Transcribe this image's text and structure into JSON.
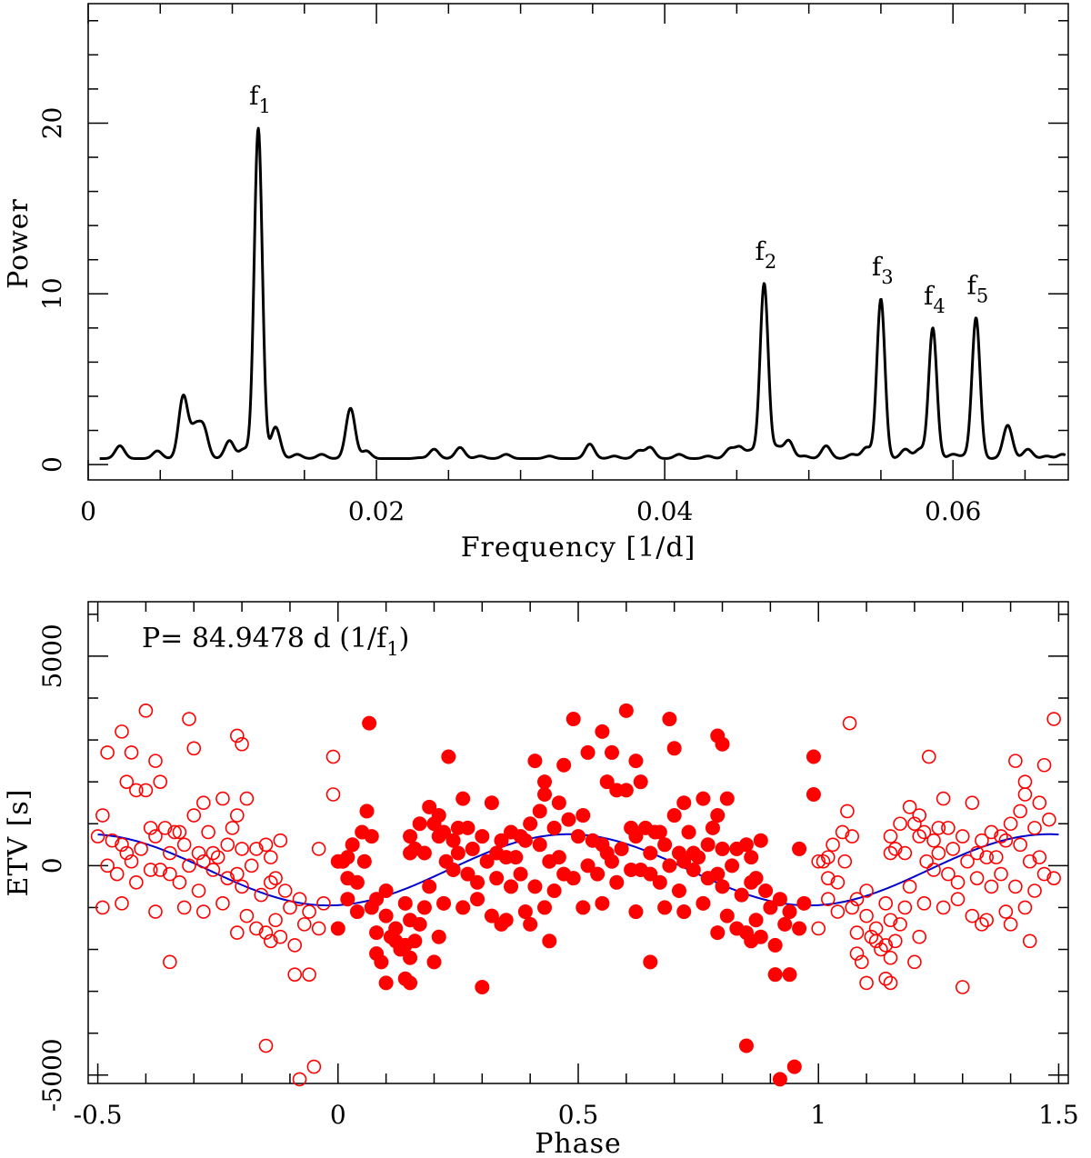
{
  "chart_data": [
    {
      "type": "line",
      "name": "periodogram",
      "xlabel": "Frequency [1/d]",
      "ylabel": "Power",
      "xlim": [
        0,
        0.068
      ],
      "ylim": [
        -0.9,
        27
      ],
      "xticks": [
        0,
        0.02,
        0.04,
        0.06
      ],
      "xtick_labels": [
        "0",
        "0.02",
        "0.04",
        "0.06"
      ],
      "yticks": [
        0,
        10,
        20
      ],
      "ytick_labels": [
        "0",
        "10",
        "20"
      ],
      "baseline_power": 0.35,
      "freq_range": [
        0.0008,
        0.0678
      ],
      "peaks": [
        {
          "label": "f",
          "sub": "1",
          "freq": 0.0118,
          "power": 19.7
        },
        {
          "label": "f",
          "sub": "2",
          "freq": 0.0469,
          "power": 10.6
        },
        {
          "label": "f",
          "sub": "3",
          "freq": 0.055,
          "power": 9.7
        },
        {
          "label": "f",
          "sub": "4",
          "freq": 0.0586,
          "power": 8.0
        },
        {
          "label": "f",
          "sub": "5",
          "freq": 0.0616,
          "power": 8.6
        }
      ],
      "minor_peaks": [
        [
          0.0022,
          1.1
        ],
        [
          0.0048,
          0.8
        ],
        [
          0.0066,
          4.0
        ],
        [
          0.0074,
          2.0
        ],
        [
          0.008,
          2.1
        ],
        [
          0.0098,
          1.4
        ],
        [
          0.0108,
          0.9
        ],
        [
          0.013,
          2.2
        ],
        [
          0.0145,
          0.6
        ],
        [
          0.0162,
          0.6
        ],
        [
          0.0182,
          3.3
        ],
        [
          0.0193,
          0.8
        ],
        [
          0.023,
          0.4
        ],
        [
          0.024,
          0.9
        ],
        [
          0.0258,
          1.0
        ],
        [
          0.0272,
          0.5
        ],
        [
          0.029,
          0.6
        ],
        [
          0.032,
          0.5
        ],
        [
          0.0348,
          1.2
        ],
        [
          0.0365,
          0.5
        ],
        [
          0.0382,
          0.8
        ],
        [
          0.039,
          1.0
        ],
        [
          0.041,
          0.6
        ],
        [
          0.043,
          0.5
        ],
        [
          0.0445,
          0.9
        ],
        [
          0.0452,
          1.0
        ],
        [
          0.046,
          0.8
        ],
        [
          0.0478,
          1.0
        ],
        [
          0.0486,
          1.4
        ],
        [
          0.0497,
          0.5
        ],
        [
          0.0512,
          1.1
        ],
        [
          0.053,
          0.6
        ],
        [
          0.054,
          1.0
        ],
        [
          0.0567,
          0.9
        ],
        [
          0.0577,
          0.9
        ],
        [
          0.06,
          0.6
        ],
        [
          0.0608,
          0.5
        ],
        [
          0.0638,
          2.3
        ],
        [
          0.0652,
          0.9
        ],
        [
          0.0665,
          0.5
        ],
        [
          0.0676,
          0.6
        ]
      ]
    },
    {
      "type": "scatter",
      "name": "etv-phase",
      "xlabel": "Phase",
      "ylabel": "ETV [s]",
      "xlim": [
        -0.52,
        1.52
      ],
      "ylim": [
        -5200,
        6300
      ],
      "xticks": [
        -0.5,
        0,
        0.5,
        1,
        1.5
      ],
      "xtick_labels": [
        "-0.5",
        "0",
        "0.5",
        "1",
        "1.5"
      ],
      "yticks": [
        -5000,
        0,
        5000
      ],
      "ytick_labels": [
        "-5000",
        "0",
        "5000"
      ],
      "annotation": {
        "prefix": "P= 84.9478 d (1/f",
        "sub": "1",
        "suffix": ")"
      },
      "model": {
        "mean": -100,
        "amplitude": 850,
        "peak_phase": 0.48
      },
      "colors": {
        "points": "#ff0000",
        "model": "#0000cc"
      },
      "points": [
        [
          0.065,
          3400
        ],
        [
          0.25,
          900
        ],
        [
          0.41,
          2500
        ],
        [
          0.49,
          3500
        ],
        [
          0.55,
          3200
        ],
        [
          0.6,
          3700
        ],
        [
          0.69,
          3500
        ],
        [
          0.79,
          3100
        ],
        [
          0.99,
          2600
        ],
        [
          0.43,
          2000
        ],
        [
          0.52,
          2700
        ],
        [
          0.57,
          2700
        ],
        [
          0.62,
          2500
        ],
        [
          0.7,
          2800
        ],
        [
          0.8,
          2900
        ],
        [
          0.23,
          2600
        ],
        [
          0.47,
          2400
        ],
        [
          0.58,
          1800
        ],
        [
          0.43,
          1700
        ],
        [
          0.99,
          1700
        ],
        [
          0.06,
          1300
        ],
        [
          0.19,
          1400
        ],
        [
          0.26,
          1600
        ],
        [
          0.32,
          1500
        ],
        [
          0.42,
          1300
        ],
        [
          0.46,
          1500
        ],
        [
          0.56,
          2000
        ],
        [
          0.63,
          2000
        ],
        [
          0.72,
          1500
        ],
        [
          0.76,
          1600
        ],
        [
          0.79,
          1200
        ],
        [
          0.81,
          1600
        ],
        [
          0.21,
          1200
        ],
        [
          0.24,
          600
        ],
        [
          0.36,
          800
        ],
        [
          0.4,
          1000
        ],
        [
          0.51,
          1200
        ],
        [
          0.6,
          1800
        ],
        [
          0.66,
          800
        ],
        [
          0.7,
          1200
        ],
        [
          0.78,
          900
        ],
        [
          0.05,
          800
        ],
        [
          0.07,
          700
        ],
        [
          0.17,
          1000
        ],
        [
          0.2,
          1000
        ],
        [
          0.22,
          800
        ],
        [
          0.27,
          900
        ],
        [
          0.3,
          700
        ],
        [
          0.34,
          600
        ],
        [
          0.38,
          700
        ],
        [
          0.45,
          900
        ],
        [
          0.48,
          1100
        ],
        [
          0.55,
          500
        ],
        [
          0.61,
          900
        ],
        [
          0.64,
          900
        ],
        [
          0.67,
          800
        ],
        [
          0.73,
          800
        ],
        [
          0.83,
          400
        ],
        [
          0.85,
          500
        ],
        [
          0.88,
          600
        ],
        [
          0.96,
          400
        ],
        [
          0.15,
          700
        ],
        [
          0.16,
          400
        ],
        [
          0.18,
          300
        ],
        [
          0.21,
          700
        ],
        [
          0.25,
          300
        ],
        [
          0.28,
          400
        ],
        [
          0.33,
          300
        ],
        [
          0.35,
          200
        ],
        [
          0.39,
          600
        ],
        [
          0.42,
          500
        ],
        [
          0.46,
          200
        ],
        [
          0.5,
          700
        ],
        [
          0.53,
          600
        ],
        [
          0.56,
          300
        ],
        [
          0.59,
          400
        ],
        [
          0.62,
          700
        ],
        [
          0.65,
          300
        ],
        [
          0.68,
          500
        ],
        [
          0.71,
          300
        ],
        [
          0.75,
          200
        ],
        [
          0.77,
          500
        ],
        [
          0.8,
          400
        ],
        [
          0.86,
          200
        ],
        [
          0.02,
          200
        ],
        [
          0.03,
          500
        ],
        [
          0.055,
          100
        ],
        [
          0.01,
          100
        ],
        [
          0.15,
          300
        ],
        [
          0.225,
          100
        ],
        [
          0.31,
          100
        ],
        [
          0.37,
          200
        ],
        [
          0.44,
          100
        ],
        [
          0.47,
          -200
        ],
        [
          0.52,
          0
        ],
        [
          0.57,
          100
        ],
        [
          0.63,
          -100
        ],
        [
          0.69,
          0
        ],
        [
          0.72,
          100
        ],
        [
          0.74,
          300
        ],
        [
          0.79,
          -200
        ],
        [
          0.82,
          0
        ],
        [
          0.87,
          -300
        ],
        [
          0.0,
          100
        ],
        [
          0.02,
          -300
        ],
        [
          0.04,
          -400
        ],
        [
          0.08,
          -800
        ],
        [
          0.1,
          -600
        ],
        [
          0.14,
          -900
        ],
        [
          0.19,
          -500
        ],
        [
          0.24,
          -100
        ],
        [
          0.27,
          -200
        ],
        [
          0.29,
          -400
        ],
        [
          0.33,
          -300
        ],
        [
          0.36,
          -500
        ],
        [
          0.38,
          -200
        ],
        [
          0.41,
          -500
        ],
        [
          0.45,
          -600
        ],
        [
          0.49,
          -300
        ],
        [
          0.54,
          -200
        ],
        [
          0.58,
          -400
        ],
        [
          0.61,
          -100
        ],
        [
          0.65,
          -200
        ],
        [
          0.67,
          -400
        ],
        [
          0.71,
          -600
        ],
        [
          0.74,
          -100
        ],
        [
          0.77,
          -300
        ],
        [
          0.8,
          -500
        ],
        [
          0.84,
          -700
        ],
        [
          0.86,
          -400
        ],
        [
          0.89,
          -600
        ],
        [
          0.92,
          -800
        ],
        [
          0.94,
          -1100
        ],
        [
          0.97,
          -900
        ],
        [
          0.02,
          -800
        ],
        [
          0.04,
          -1100
        ],
        [
          0.07,
          -1000
        ],
        [
          0.1,
          -1200
        ],
        [
          0.12,
          -1500
        ],
        [
          0.15,
          -1300
        ],
        [
          0.18,
          -1000
        ],
        [
          0.22,
          -900
        ],
        [
          0.26,
          -1000
        ],
        [
          0.29,
          -800
        ],
        [
          0.32,
          -1200
        ],
        [
          0.35,
          -1300
        ],
        [
          0.39,
          -1100
        ],
        [
          0.43,
          -1000
        ],
        [
          0.51,
          -1000
        ],
        [
          0.55,
          -900
        ],
        [
          0.62,
          -1100
        ],
        [
          0.68,
          -1000
        ],
        [
          0.72,
          -1100
        ],
        [
          0.76,
          -900
        ],
        [
          0.81,
          -1200
        ],
        [
          0.83,
          -1500
        ],
        [
          0.87,
          -1300
        ],
        [
          0.9,
          -1000
        ],
        [
          0.93,
          -1400
        ],
        [
          0.96,
          -1500
        ],
        [
          0.0,
          -1500
        ],
        [
          0.08,
          -1600
        ],
        [
          0.11,
          -1700
        ],
        [
          0.14,
          -1900
        ],
        [
          0.16,
          -1800
        ],
        [
          0.21,
          -1700
        ],
        [
          0.34,
          -1400
        ],
        [
          0.4,
          -1400
        ],
        [
          0.79,
          -1600
        ],
        [
          0.85,
          -1600
        ],
        [
          0.88,
          -1700
        ],
        [
          0.91,
          -1900
        ],
        [
          0.12,
          -1800
        ],
        [
          0.13,
          -2000
        ],
        [
          0.17,
          -1400
        ],
        [
          0.44,
          -1800
        ],
        [
          0.86,
          -1800
        ],
        [
          0.08,
          -2100
        ],
        [
          0.15,
          -2200
        ],
        [
          0.2,
          -2300
        ],
        [
          0.09,
          -2300
        ],
        [
          0.65,
          -2300
        ],
        [
          0.91,
          -2600
        ],
        [
          0.94,
          -2600
        ],
        [
          0.14,
          -2700
        ],
        [
          0.15,
          -2800
        ],
        [
          0.1,
          -2800
        ],
        [
          0.3,
          -2900
        ],
        [
          0.85,
          -4300
        ],
        [
          0.95,
          -4800
        ],
        [
          0.92,
          -5100
        ]
      ]
    }
  ]
}
